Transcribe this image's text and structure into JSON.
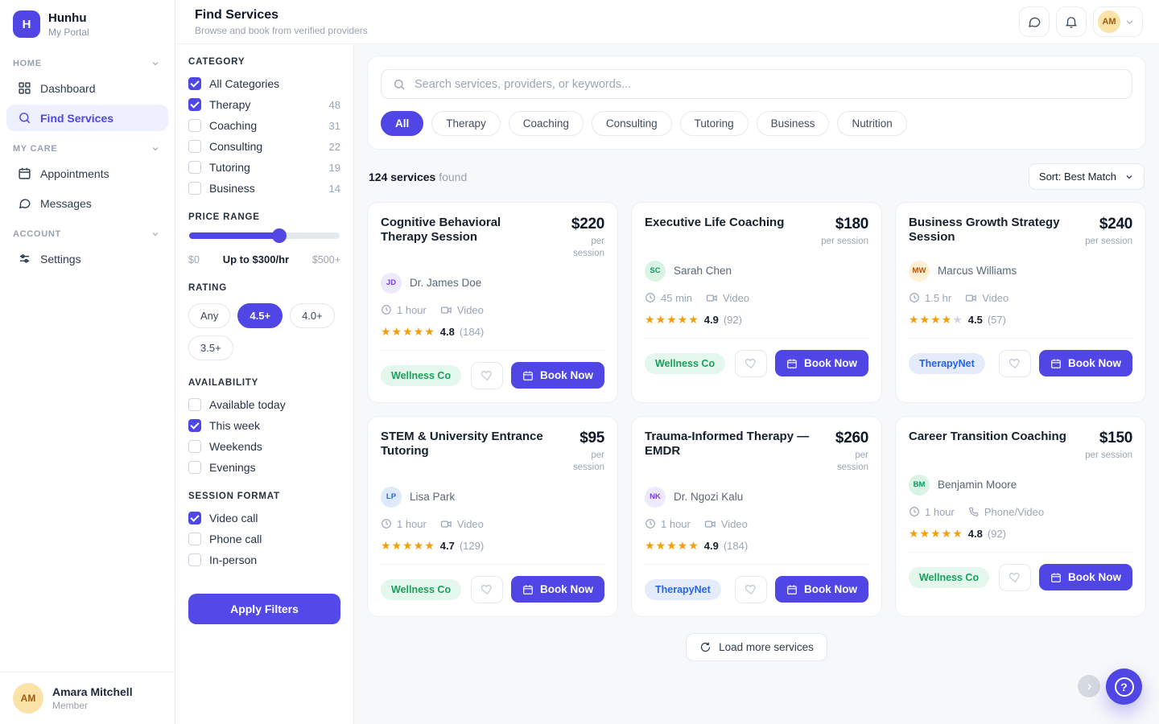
{
  "brand": {
    "logo_letter": "H",
    "name": "Hunhu",
    "subtitle": "My Portal"
  },
  "nav": {
    "sections": [
      {
        "label": "HOME"
      },
      {
        "label": "MY CARE"
      },
      {
        "label": "ACCOUNT"
      }
    ],
    "items": {
      "dashboard": {
        "label": "Dashboard",
        "active": false
      },
      "find_services": {
        "label": "Find Services",
        "active": true
      },
      "appointments": {
        "label": "Appointments",
        "active": false
      },
      "messages": {
        "label": "Messages",
        "active": false
      },
      "settings": {
        "label": "Settings",
        "active": false
      }
    },
    "user": {
      "initials": "AM",
      "name": "Amara Mitchell",
      "role": "Member"
    }
  },
  "header": {
    "title": "Find Services",
    "subtitle": "Browse and book from verified providers",
    "avatar_initials": "AM"
  },
  "filters": {
    "category": {
      "title": "CATEGORY",
      "options": [
        {
          "label": "All Categories",
          "count": "",
          "checked": true
        },
        {
          "label": "Therapy",
          "count": "48",
          "checked": true
        },
        {
          "label": "Coaching",
          "count": "31",
          "checked": false
        },
        {
          "label": "Consulting",
          "count": "22",
          "checked": false
        },
        {
          "label": "Tutoring",
          "count": "19",
          "checked": false
        },
        {
          "label": "Business",
          "count": "14",
          "checked": false
        }
      ]
    },
    "price": {
      "title": "PRICE RANGE",
      "min_label": "$0",
      "current_label": "Up to $300/hr",
      "max_label": "$500+",
      "percent": 60
    },
    "rating": {
      "title": "RATING",
      "options": [
        {
          "label": "Any",
          "selected": false
        },
        {
          "label": "4.5+",
          "selected": true
        },
        {
          "label": "4.0+",
          "selected": false
        },
        {
          "label": "3.5+",
          "selected": false
        }
      ]
    },
    "availability": {
      "title": "AVAILABILITY",
      "options": [
        {
          "label": "Available today",
          "checked": false
        },
        {
          "label": "This week",
          "checked": true
        },
        {
          "label": "Weekends",
          "checked": false
        },
        {
          "label": "Evenings",
          "checked": false
        }
      ]
    },
    "session_format": {
      "title": "SESSION FORMAT",
      "options": [
        {
          "label": "Video call",
          "checked": true
        },
        {
          "label": "Phone call",
          "checked": false
        },
        {
          "label": "In-person",
          "checked": false
        }
      ]
    },
    "apply_label": "Apply Filters"
  },
  "search": {
    "placeholder": "Search services, providers, or keywords...",
    "pills": [
      {
        "label": "All",
        "selected": true
      },
      {
        "label": "Therapy",
        "selected": false
      },
      {
        "label": "Coaching",
        "selected": false
      },
      {
        "label": "Consulting",
        "selected": false
      },
      {
        "label": "Tutoring",
        "selected": false
      },
      {
        "label": "Business",
        "selected": false
      },
      {
        "label": "Nutrition",
        "selected": false
      }
    ]
  },
  "results": {
    "count_bold": "124 services",
    "count_rest": " found",
    "sort_label": "Sort: Best Match"
  },
  "cards": [
    {
      "title": "Cognitive Behavioral Therapy Session",
      "price": "$220",
      "per": "per session",
      "provider": {
        "initials": "JD",
        "name": "Dr. James Doe"
      },
      "duration": "1 hour",
      "format": "Video",
      "stars_full": "★★★★★",
      "stars_empty": "",
      "rating": "4.8",
      "reviews": "(184)",
      "badge": "Wellness Co",
      "book_label": "Book Now"
    },
    {
      "title": "Executive Life Coaching",
      "price": "$180",
      "per": "per session",
      "provider": {
        "initials": "SC",
        "name": "Sarah Chen"
      },
      "duration": "45 min",
      "format": "Video",
      "stars_full": "★★★★★",
      "stars_empty": "",
      "rating": "4.9",
      "reviews": "(92)",
      "badge": "Wellness Co",
      "book_label": "Book Now"
    },
    {
      "title": "Business Growth Strategy Session",
      "price": "$240",
      "per": "per session",
      "provider": {
        "initials": "MW",
        "name": "Marcus Williams"
      },
      "duration": "1.5 hr",
      "format": "Video",
      "stars_full": "★★★★",
      "stars_empty": "★",
      "rating": "4.5",
      "reviews": "(57)",
      "badge": "TherapyNet",
      "book_label": "Book Now"
    },
    {
      "title": "STEM & University Entrance Tutoring",
      "price": "$95",
      "per": "per session",
      "provider": {
        "initials": "LP",
        "name": "Lisa Park"
      },
      "duration": "1 hour",
      "format": "Video",
      "stars_full": "★★★★★",
      "stars_empty": "",
      "rating": "4.7",
      "reviews": "(129)",
      "badge": "Wellness Co",
      "book_label": "Book Now"
    },
    {
      "title": "Trauma-Informed Therapy — EMDR",
      "price": "$260",
      "per": "per session",
      "provider": {
        "initials": "NK",
        "name": "Dr. Ngozi Kalu"
      },
      "duration": "1 hour",
      "format": "Video",
      "stars_full": "★★★★★",
      "stars_empty": "",
      "rating": "4.9",
      "reviews": "(184)",
      "badge": "TherapyNet",
      "book_label": "Book Now"
    },
    {
      "title": "Career Transition Coaching",
      "price": "$150",
      "per": "per session",
      "provider": {
        "initials": "BM",
        "name": "Benjamin Moore"
      },
      "duration": "1 hour",
      "format": "Phone/Video",
      "stars_full": "★★★★★",
      "stars_empty": "",
      "rating": "4.8",
      "reviews": "(92)",
      "badge": "Wellness Co",
      "book_label": "Book Now"
    }
  ],
  "load_more_label": "Load more services",
  "colors": {
    "primary": "#4f46e5",
    "badge_green": "#199f5c",
    "badge_blue": "#2563eb",
    "star": "#f59e0b"
  }
}
